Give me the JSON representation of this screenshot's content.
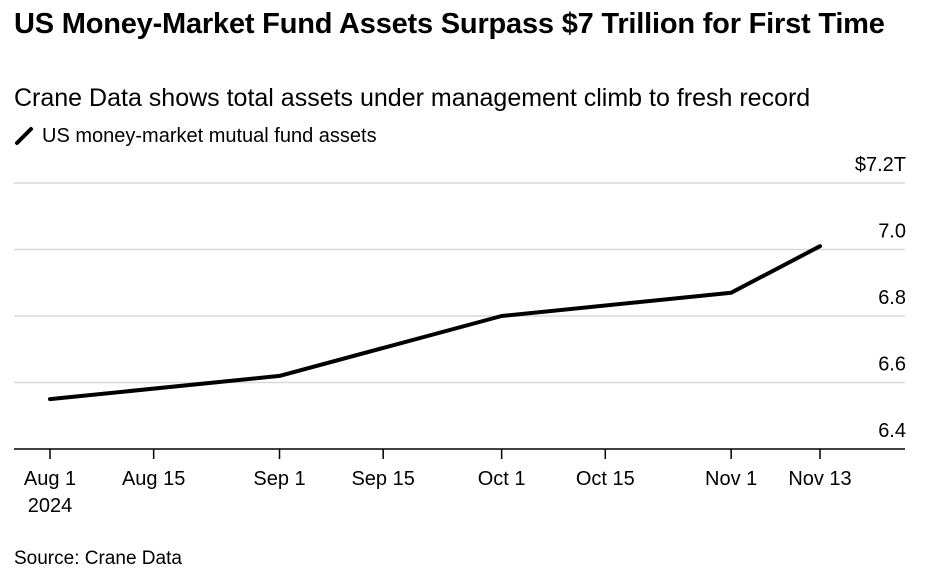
{
  "header": {
    "title": "US Money-Market Fund Assets Surpass $7 Trillion for First Time",
    "subtitle": "Crane Data shows total assets under management climb to fresh record"
  },
  "footer": {
    "source": "Source: Crane Data"
  },
  "colors": {
    "line": "#000000",
    "grid": "#d9d9d9",
    "axis": "#000000"
  },
  "chart_data": {
    "type": "line",
    "title": "US Money-Market Fund Assets Surpass $7 Trillion for First Time",
    "subtitle": "Crane Data shows total assets under management climb to fresh record",
    "xlabel": "",
    "ylabel": "",
    "legend": {
      "position": "top-left",
      "entries": [
        "US money-market mutual fund assets"
      ]
    },
    "grid": true,
    "y_axis_side": "right",
    "ylim": [
      6.4,
      7.2
    ],
    "xlim": [
      "2024-08-01",
      "2024-11-24"
    ],
    "yticks": [
      {
        "value": 7.2,
        "label": "$7.2T"
      },
      {
        "value": 7.0,
        "label": "7.0"
      },
      {
        "value": 6.8,
        "label": "6.8"
      },
      {
        "value": 6.6,
        "label": "6.6"
      },
      {
        "value": 6.4,
        "label": "6.4"
      }
    ],
    "xticks": [
      {
        "date": "2024-08-01",
        "label": "Aug 1",
        "sublabel": "2024"
      },
      {
        "date": "2024-08-15",
        "label": "Aug 15"
      },
      {
        "date": "2024-09-01",
        "label": "Sep 1"
      },
      {
        "date": "2024-09-15",
        "label": "Sep 15"
      },
      {
        "date": "2024-10-01",
        "label": "Oct 1"
      },
      {
        "date": "2024-10-15",
        "label": "Oct 15"
      },
      {
        "date": "2024-11-01",
        "label": "Nov 1"
      },
      {
        "date": "2024-11-13",
        "label": "Nov 13"
      }
    ],
    "series": [
      {
        "name": "US money-market mutual fund assets",
        "points": [
          {
            "x": "2024-08-01",
            "y": 6.55
          },
          {
            "x": "2024-09-01",
            "y": 6.62
          },
          {
            "x": "2024-10-01",
            "y": 6.8
          },
          {
            "x": "2024-11-01",
            "y": 6.87
          },
          {
            "x": "2024-11-13",
            "y": 7.01
          }
        ]
      }
    ]
  }
}
